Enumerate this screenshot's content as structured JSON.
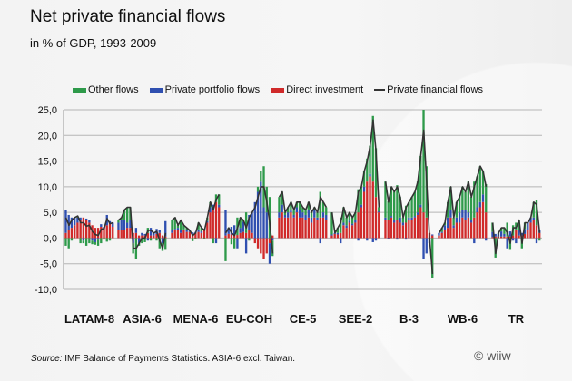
{
  "title": "Net private financial flows",
  "subtitle": "in % of GDP, 1993-2009",
  "source_label": "Source:",
  "source_text": " IMF Balance of Payments Statistics. ASIA-6 excl. Taiwan.",
  "copyright": "© wiiw",
  "chart_data": {
    "type": "bar",
    "stacked": true,
    "years": "1993-2009",
    "ylim": [
      -10,
      25
    ],
    "yticks": [
      "25,0",
      "20,0",
      "15,0",
      "10,0",
      "5,0",
      "0,0",
      "-5,0",
      "-10,0"
    ],
    "ytick_values": [
      25,
      20,
      15,
      10,
      5,
      0,
      -5,
      -10
    ],
    "grid": true,
    "legend_placement": "top",
    "colors": {
      "other": "#2e9a4a",
      "portfolio": "#2f4fb0",
      "direct": "#d02a2a",
      "line": "#333333"
    },
    "legend": [
      "Other flows",
      "Private portfolio flows",
      "Direct investment",
      "Private financial flows"
    ],
    "groups": [
      {
        "name": "LATAM-8",
        "direct": [
          1,
          1.5,
          2,
          2.5,
          3,
          3.5,
          4,
          3.5,
          3,
          2.5,
          2,
          2,
          2.2,
          2,
          2.5,
          2.8,
          2.2
        ],
        "portfolio": [
          4.5,
          3,
          2,
          1.5,
          1,
          0.5,
          -0.5,
          0.3,
          0.5,
          -0.5,
          -0.8,
          -0.3,
          0.5,
          0.2,
          2,
          0.5,
          0.8
        ],
        "other": [
          -1.5,
          -2,
          -0.5,
          0,
          0.3,
          -1,
          -0.5,
          -1.5,
          -1,
          -0.7,
          -0.5,
          -1.2,
          -1,
          -0.3,
          -0.7,
          -0.5,
          0
        ]
      },
      {
        "name": "ASIA-6",
        "direct": [
          1.5,
          1.5,
          1.5,
          2,
          2,
          1,
          1,
          0.5,
          0.5,
          0.5,
          1,
          0.5,
          0.5,
          0.8,
          1,
          0.5,
          0.3
        ],
        "portfolio": [
          1.5,
          2,
          2,
          1,
          1.5,
          -1,
          1,
          -1,
          0.5,
          0.3,
          -0.5,
          1.5,
          0.5,
          1,
          0.5,
          -1,
          3
        ],
        "other": [
          0.5,
          0.5,
          2,
          3,
          2.5,
          -2,
          -4,
          -0.5,
          -1,
          -0.8,
          1,
          -0.5,
          0,
          -0.5,
          -2,
          -1.5,
          -2.3
        ]
      },
      {
        "name": "MENA-6",
        "direct": [
          1,
          1.5,
          1.5,
          1,
          1.5,
          1.2,
          1.2,
          0.8,
          1,
          1.2,
          1,
          1.5,
          3,
          5,
          5.5,
          7,
          6
        ],
        "portfolio": [
          0.5,
          0.3,
          0.5,
          0.5,
          0.2,
          0.3,
          0.2,
          0.3,
          0.2,
          0.5,
          0.3,
          0.2,
          0.3,
          1,
          1,
          -1,
          0.5
        ],
        "other": [
          2,
          2.2,
          0.5,
          2,
          0.8,
          0.5,
          0.1,
          -0.6,
          -0.2,
          1.3,
          0.7,
          -0.2,
          0.7,
          1,
          -1,
          1.5,
          2
        ]
      },
      {
        "name": "EU-COH",
        "direct": [
          0.5,
          0.8,
          0.7,
          0.5,
          0.6,
          1,
          1.2,
          1,
          1.5,
          1,
          -1,
          -2,
          -3,
          -4,
          -3,
          -1,
          0.5
        ],
        "portfolio": [
          5,
          1,
          1.5,
          2,
          -2,
          1,
          2,
          -3,
          3,
          4,
          7,
          9,
          11,
          6,
          5,
          -4,
          -0.5
        ],
        "other": [
          -4.5,
          0.2,
          -1.2,
          -2,
          3.4,
          2,
          0.3,
          4,
          -0.5,
          0,
          0,
          1,
          2,
          8,
          5,
          8,
          -3
        ]
      },
      {
        "name": "CE-5",
        "direct": [
          4,
          5,
          4,
          4,
          5,
          4,
          5,
          4,
          4,
          3.5,
          4,
          3,
          4,
          3.5,
          4,
          4,
          3.5
        ],
        "portfolio": [
          1,
          1.5,
          0.5,
          1,
          0.5,
          0.5,
          1,
          1.5,
          1,
          1,
          1.5,
          1,
          1.5,
          0.5,
          -1,
          1,
          1
        ],
        "other": [
          3,
          2.5,
          0.5,
          1,
          1.5,
          1,
          1,
          1.5,
          1,
          1,
          1.5,
          1,
          0.5,
          1,
          5,
          2,
          1.5
        ]
      },
      {
        "name": "SEE-2",
        "direct": [
          0.5,
          0.8,
          0.7,
          1,
          2.5,
          2,
          3,
          2.5,
          3,
          5,
          6,
          9,
          11,
          12,
          11,
          8,
          5
        ],
        "portfolio": [
          0.2,
          0.2,
          0.3,
          -1,
          0.5,
          0.5,
          0.4,
          0.3,
          0.5,
          -0.5,
          0.5,
          1,
          -0.5,
          0.5,
          -0.8,
          -0.5,
          0.2
        ],
        "other": [
          4.3,
          0,
          1,
          3,
          3,
          1.5,
          1.6,
          1.2,
          1.5,
          4.5,
          3.5,
          3,
          4.5,
          5.5,
          12.8,
          9.5,
          0.8
        ]
      },
      {
        "name": "B-3",
        "direct": [
          3.5,
          3.5,
          4,
          3,
          3.5,
          3,
          2.5,
          3,
          3.5,
          3.5,
          4,
          4.5,
          6,
          5,
          4,
          1,
          0.5
        ],
        "portfolio": [
          0.5,
          -0.2,
          0.3,
          0.5,
          -0.3,
          1,
          0.5,
          -0.3,
          0.5,
          0.5,
          0.3,
          0.5,
          0.5,
          -4,
          -3,
          -1,
          0.2
        ],
        "other": [
          7,
          3.7,
          5.7,
          5.5,
          6.8,
          4,
          1,
          3.3,
          3,
          4,
          4.7,
          6,
          9.5,
          20,
          10,
          0,
          -7.7
        ]
      },
      {
        "name": "WB-6",
        "direct": [
          0.5,
          1,
          1.5,
          2,
          4,
          2,
          3,
          3,
          4,
          3.5,
          4,
          3,
          4,
          5,
          6,
          7,
          5
        ],
        "portfolio": [
          0.5,
          0.2,
          1,
          2,
          1.5,
          0.5,
          1,
          2,
          1.5,
          2,
          1,
          0.5,
          -1,
          1,
          1,
          1.5,
          -0.5
        ],
        "other": [
          0,
          0.8,
          0.5,
          3,
          4.5,
          1.5,
          3,
          3,
          4.5,
          3.5,
          6,
          4.5,
          7,
          6,
          7,
          4.5,
          5.5
        ]
      },
      {
        "name": "TR",
        "direct": [
          0.2,
          0.3,
          0.3,
          0.3,
          0.3,
          0.3,
          0.3,
          0.5,
          1.5,
          0.5,
          0.5,
          0.8,
          1.5,
          3,
          3.5,
          2.5,
          1
        ],
        "portfolio": [
          1,
          0.5,
          0.5,
          1,
          0.5,
          -2,
          1,
          -0.5,
          -1,
          1,
          0.5,
          1,
          1.5,
          1,
          0.5,
          -1,
          0.5
        ],
        "other": [
          1.8,
          -3.8,
          0.2,
          0.7,
          1.2,
          2.7,
          -2.3,
          2,
          1.5,
          2,
          -2,
          1.2,
          0,
          0,
          3,
          5,
          -0.5
        ]
      }
    ]
  }
}
